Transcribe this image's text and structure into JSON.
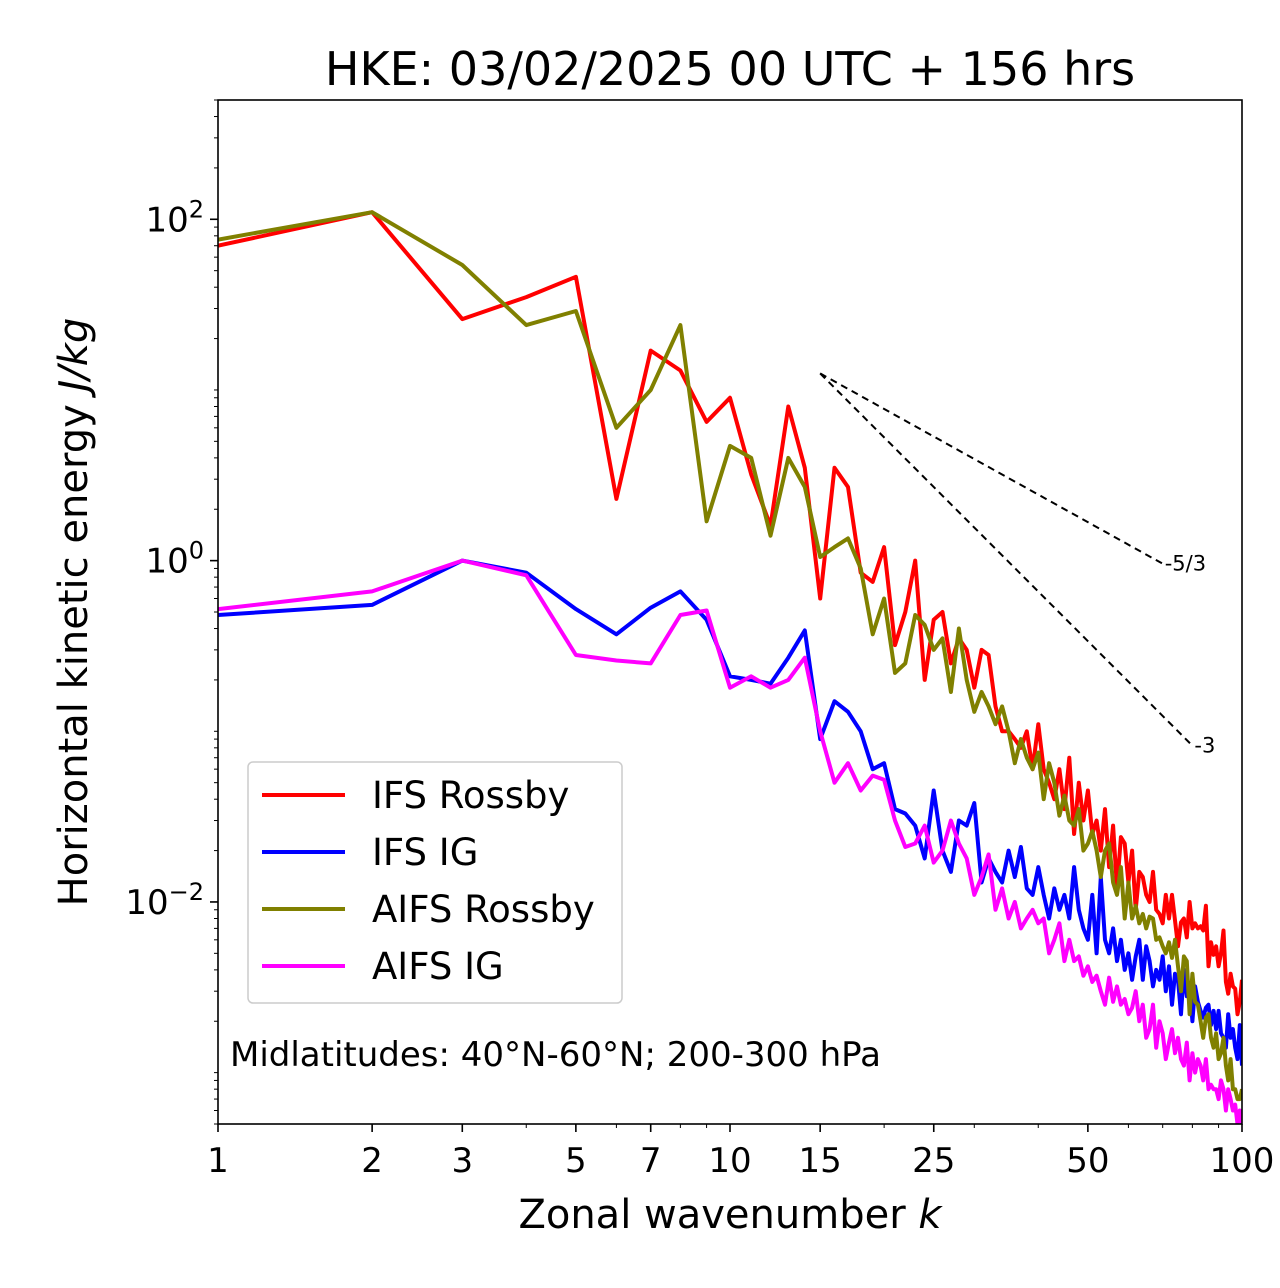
{
  "chart_data": {
    "type": "line",
    "title": "HKE: 03/02/2025 00 UTC + 156 hrs",
    "xlabel": "Zonal wavenumber",
    "xlabel_var": "k",
    "ylabel": "Horizontal kinetic energy",
    "ylabel_units": "J/kg",
    "x_scale": "log",
    "y_scale": "log",
    "xlim": [
      1,
      100
    ],
    "ylim": [
      0.0005,
      500
    ],
    "x_ticks": [
      1,
      2,
      3,
      5,
      7,
      10,
      15,
      25,
      50,
      100
    ],
    "x_tick_labels": [
      "1",
      "2",
      "3",
      "5",
      "7",
      "10",
      "15",
      "25",
      "50",
      "100"
    ],
    "y_ticks": [
      {
        "value": 100,
        "base": "10",
        "exp": "2"
      },
      {
        "value": 1,
        "base": "10",
        "exp": "0"
      },
      {
        "value": 0.01,
        "base": "10",
        "exp": "−2"
      }
    ],
    "annotation": "Midlatitudes: 40°N-60°N; 200-300 hPa",
    "legend_position": "lower-left",
    "grid": false,
    "slope_lines": [
      {
        "label": "-5/3",
        "slope": -1.6667,
        "x": [
          15,
          70
        ],
        "y0": 12.5
      },
      {
        "label": "-3",
        "slope": -3,
        "x": [
          15,
          80
        ],
        "y0": 12.5
      }
    ],
    "series": [
      {
        "name": "IFS Rossby",
        "color": "#ff0000",
        "x": [
          1,
          2,
          3,
          4,
          5,
          6,
          7,
          8,
          9,
          10,
          11,
          12,
          13,
          14,
          15,
          16,
          17,
          18,
          19,
          20,
          21,
          22,
          23,
          24,
          25,
          26,
          27,
          28,
          29,
          30,
          31,
          32,
          33,
          34,
          35,
          36,
          37,
          38,
          39,
          40,
          41,
          42,
          43,
          44,
          45,
          46,
          47,
          48,
          49,
          50,
          51,
          52,
          53,
          54,
          55,
          56,
          57,
          58,
          59,
          60,
          61,
          62,
          63,
          64,
          65,
          66,
          67,
          68,
          69,
          70,
          71,
          72,
          73,
          74,
          75,
          76,
          77,
          78,
          79,
          80,
          81,
          82,
          83,
          84,
          85,
          86,
          87,
          88,
          89,
          90,
          91,
          92,
          93,
          94,
          95,
          96,
          97,
          98,
          99,
          100
        ],
        "y": [
          70,
          110,
          26,
          35,
          46,
          2.3,
          17,
          13,
          6.5,
          9,
          3.2,
          1.6,
          8,
          3.5,
          0.6,
          3.5,
          2.7,
          0.85,
          0.75,
          1.2,
          0.32,
          0.5,
          1.0,
          0.2,
          0.45,
          0.5,
          0.25,
          0.35,
          0.3,
          0.18,
          0.3,
          0.28,
          0.14,
          0.1,
          0.1,
          0.09,
          0.08,
          0.1,
          0.06,
          0.11,
          0.06,
          0.05,
          0.04,
          0.06,
          0.035,
          0.07,
          0.025,
          0.05,
          0.03,
          0.045,
          0.025,
          0.03,
          0.02,
          0.035,
          0.016,
          0.028,
          0.012,
          0.024,
          0.022,
          0.013,
          0.02,
          0.009,
          0.015,
          0.014,
          0.011,
          0.01,
          0.015,
          0.009,
          0.0085,
          0.0075,
          0.011,
          0.008,
          0.011,
          0.0078,
          0.0055,
          0.0076,
          0.008,
          0.0062,
          0.01,
          0.007,
          0.0075,
          0.007,
          0.0072,
          0.0068,
          0.0095,
          0.0042,
          0.0058,
          0.0049,
          0.0055,
          0.0042,
          0.005,
          0.0068,
          0.0034,
          0.0029,
          0.0038,
          0.0032,
          0.0031,
          0.0022,
          0.0026,
          0.0035
        ]
      },
      {
        "name": "IFS IG",
        "color": "#0000ff",
        "x": [
          1,
          2,
          3,
          4,
          5,
          6,
          7,
          8,
          9,
          10,
          11,
          12,
          13,
          14,
          15,
          16,
          17,
          18,
          19,
          20,
          21,
          22,
          23,
          24,
          25,
          26,
          27,
          28,
          29,
          30,
          31,
          32,
          33,
          34,
          35,
          36,
          37,
          38,
          39,
          40,
          41,
          42,
          43,
          44,
          45,
          46,
          47,
          48,
          49,
          50,
          51,
          52,
          53,
          54,
          55,
          56,
          57,
          58,
          59,
          60,
          61,
          62,
          63,
          64,
          65,
          66,
          67,
          68,
          69,
          70,
          71,
          72,
          73,
          74,
          75,
          76,
          77,
          78,
          79,
          80,
          81,
          82,
          83,
          84,
          85,
          86,
          87,
          88,
          89,
          90,
          91,
          92,
          93,
          94,
          95,
          96,
          97,
          98,
          99,
          100
        ],
        "y": [
          0.48,
          0.55,
          1.0,
          0.85,
          0.52,
          0.37,
          0.53,
          0.66,
          0.45,
          0.21,
          0.2,
          0.19,
          0.27,
          0.39,
          0.09,
          0.15,
          0.13,
          0.1,
          0.06,
          0.065,
          0.035,
          0.033,
          0.028,
          0.018,
          0.045,
          0.02,
          0.015,
          0.03,
          0.028,
          0.038,
          0.013,
          0.018,
          0.015,
          0.013,
          0.02,
          0.014,
          0.021,
          0.012,
          0.011,
          0.016,
          0.011,
          0.008,
          0.012,
          0.009,
          0.011,
          0.008,
          0.016,
          0.009,
          0.007,
          0.006,
          0.011,
          0.005,
          0.014,
          0.006,
          0.005,
          0.007,
          0.0045,
          0.006,
          0.004,
          0.005,
          0.0035,
          0.0048,
          0.006,
          0.0035,
          0.0055,
          0.0045,
          0.0032,
          0.004,
          0.0035,
          0.0048,
          0.003,
          0.0042,
          0.0025,
          0.0038,
          0.0035,
          0.0022,
          0.004,
          0.0028,
          0.0033,
          0.002,
          0.0032,
          0.0026,
          0.0023,
          0.0021,
          0.0024,
          0.0025,
          0.0019,
          0.0023,
          0.0018,
          0.0023,
          0.0017,
          0.0016,
          0.0014,
          0.0022,
          0.0016,
          0.0018,
          0.0014,
          0.0012,
          0.0019,
          0.0011
        ]
      },
      {
        "name": "AIFS Rossby",
        "color": "#808000",
        "x": [
          1,
          2,
          3,
          4,
          5,
          6,
          7,
          8,
          9,
          10,
          11,
          12,
          13,
          14,
          15,
          16,
          17,
          18,
          19,
          20,
          21,
          22,
          23,
          24,
          25,
          26,
          27,
          28,
          29,
          30,
          31,
          32,
          33,
          34,
          35,
          36,
          37,
          38,
          39,
          40,
          41,
          42,
          43,
          44,
          45,
          46,
          47,
          48,
          49,
          50,
          51,
          52,
          53,
          54,
          55,
          56,
          57,
          58,
          59,
          60,
          61,
          62,
          63,
          64,
          65,
          66,
          67,
          68,
          69,
          70,
          71,
          72,
          73,
          74,
          75,
          76,
          77,
          78,
          79,
          80,
          81,
          82,
          83,
          84,
          85,
          86,
          87,
          88,
          89,
          90,
          91,
          92,
          93,
          94,
          95,
          96,
          97,
          98,
          99,
          100
        ],
        "y": [
          76,
          110,
          54,
          24,
          29,
          6,
          10,
          24,
          1.7,
          4.7,
          4,
          1.4,
          4,
          2.7,
          1.05,
          1.2,
          1.35,
          0.9,
          0.37,
          0.6,
          0.22,
          0.25,
          0.48,
          0.42,
          0.3,
          0.35,
          0.17,
          0.4,
          0.2,
          0.13,
          0.17,
          0.14,
          0.11,
          0.14,
          0.1,
          0.065,
          0.09,
          0.07,
          0.06,
          0.075,
          0.04,
          0.065,
          0.05,
          0.032,
          0.042,
          0.03,
          0.028,
          0.035,
          0.02,
          0.022,
          0.026,
          0.02,
          0.014,
          0.02,
          0.022,
          0.013,
          0.011,
          0.016,
          0.008,
          0.013,
          0.008,
          0.0095,
          0.0075,
          0.0085,
          0.007,
          0.0082,
          0.008,
          0.006,
          0.0062,
          0.0055,
          0.005,
          0.0058,
          0.0047,
          0.006,
          0.0042,
          0.003,
          0.0048,
          0.0045,
          0.0022,
          0.0038,
          0.0026,
          0.0025,
          0.002,
          0.0016,
          0.0021,
          0.0022,
          0.0016,
          0.0014,
          0.0017,
          0.0012,
          0.0013,
          0.0016,
          0.0011,
          0.0009,
          0.0012,
          0.0008,
          0.0008,
          0.0007,
          0.0007,
          0.0008
        ]
      },
      {
        "name": "AIFS IG",
        "color": "#ff00ff",
        "x": [
          1,
          2,
          3,
          4,
          5,
          6,
          7,
          8,
          9,
          10,
          11,
          12,
          13,
          14,
          15,
          16,
          17,
          18,
          19,
          20,
          21,
          22,
          23,
          24,
          25,
          26,
          27,
          28,
          29,
          30,
          31,
          32,
          33,
          34,
          35,
          36,
          37,
          38,
          39,
          40,
          41,
          42,
          43,
          44,
          45,
          46,
          47,
          48,
          49,
          50,
          51,
          52,
          53,
          54,
          55,
          56,
          57,
          58,
          59,
          60,
          61,
          62,
          63,
          64,
          65,
          66,
          67,
          68,
          69,
          70,
          71,
          72,
          73,
          74,
          75,
          76,
          77,
          78,
          79,
          80,
          81,
          82,
          83,
          84,
          85,
          86,
          87,
          88,
          89,
          90,
          91,
          92,
          93,
          94,
          95,
          96,
          97,
          98,
          99,
          100
        ],
        "y": [
          0.52,
          0.66,
          1.0,
          0.82,
          0.28,
          0.26,
          0.25,
          0.48,
          0.51,
          0.18,
          0.21,
          0.18,
          0.2,
          0.27,
          0.1,
          0.05,
          0.065,
          0.045,
          0.055,
          0.052,
          0.03,
          0.021,
          0.022,
          0.028,
          0.017,
          0.02,
          0.03,
          0.022,
          0.018,
          0.011,
          0.014,
          0.019,
          0.009,
          0.012,
          0.008,
          0.01,
          0.007,
          0.008,
          0.009,
          0.0075,
          0.008,
          0.005,
          0.006,
          0.0075,
          0.0045,
          0.006,
          0.0045,
          0.0048,
          0.0037,
          0.0042,
          0.0034,
          0.0037,
          0.003,
          0.0025,
          0.0036,
          0.0026,
          0.0032,
          0.0025,
          0.0027,
          0.0022,
          0.0024,
          0.003,
          0.002,
          0.0025,
          0.0016,
          0.0018,
          0.0025,
          0.0014,
          0.002,
          0.0017,
          0.0012,
          0.0015,
          0.0018,
          0.0013,
          0.0016,
          0.0012,
          0.0011,
          0.0015,
          0.0009,
          0.0013,
          0.001,
          0.0012,
          0.0011,
          0.0009,
          0.0012,
          0.0008,
          0.00085,
          0.0008,
          0.0008,
          0.0007,
          0.0009,
          0.0008,
          0.0006,
          0.0008,
          0.0007,
          0.0006,
          0.00065,
          0.0005,
          0.0006,
          0.0005
        ]
      }
    ]
  }
}
